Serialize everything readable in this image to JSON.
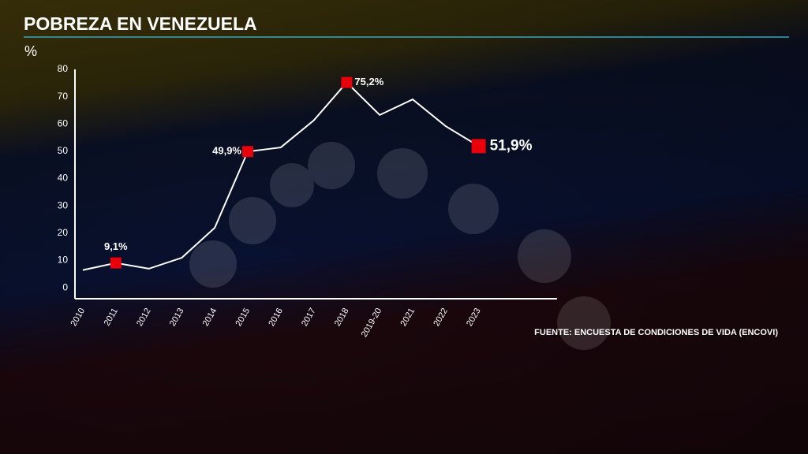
{
  "chart_data": {
    "type": "line",
    "title": "POBREZA EN VENEZUELA",
    "y_label": "%",
    "source": "FUENTE: ENCUESTA DE CONDICIONES DE VIDA (ENCOVI)",
    "categories": [
      "2010",
      "2011",
      "2012",
      "2013",
      "2014",
      "2015",
      "2016",
      "2017",
      "2018",
      "2019-20",
      "2021",
      "2022",
      "2023"
    ],
    "values": [
      6.5,
      9.1,
      7,
      11,
      22,
      49.9,
      51.4,
      61.3,
      75.2,
      63.3,
      69,
      59.2,
      51.9
    ],
    "value_labels": [
      null,
      "9,1%",
      null,
      null,
      null,
      "49,9%",
      null,
      null,
      "75,2%",
      null,
      null,
      null,
      "51,9%"
    ],
    "color": "#ffffff",
    "marker_color": "#e8000b",
    "ylim": [
      -4,
      80
    ],
    "yticks": [
      0,
      10,
      20,
      30,
      40,
      50,
      60,
      70,
      80
    ],
    "grid": false
  }
}
